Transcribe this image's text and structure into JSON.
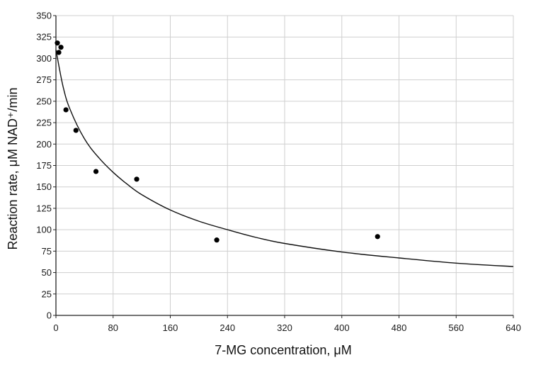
{
  "chart_data": {
    "type": "scatter",
    "xlabel": "7-MG concentration, μM",
    "ylabel": "Reaction rate, μM NAD⁺/min",
    "xlim": [
      0,
      640
    ],
    "ylim": [
      0,
      350
    ],
    "x_ticks": [
      "0",
      "80",
      "160",
      "240",
      "320",
      "400",
      "480",
      "560",
      "640"
    ],
    "y_ticks": [
      "0",
      "25",
      "50",
      "75",
      "100",
      "125",
      "150",
      "175",
      "200",
      "225",
      "250",
      "275",
      "300",
      "325",
      "350"
    ],
    "grid": true,
    "series": [
      {
        "points": [
          {
            "x": 2,
            "y": 318
          },
          {
            "x": 4,
            "y": 307
          },
          {
            "x": 7,
            "y": 313
          },
          {
            "x": 14,
            "y": 240
          },
          {
            "x": 28,
            "y": 216
          },
          {
            "x": 56,
            "y": 168
          },
          {
            "x": 113,
            "y": 159
          },
          {
            "x": 225,
            "y": 88
          },
          {
            "x": 450,
            "y": 92
          }
        ]
      }
    ],
    "fit_curve": {
      "x": [
        0,
        10,
        20,
        40,
        60,
        80,
        100,
        120,
        160,
        200,
        240,
        280,
        320,
        400,
        480,
        560,
        640
      ],
      "y": [
        310,
        267,
        240,
        206,
        184,
        167,
        153,
        141,
        123,
        110,
        100,
        91,
        84,
        74,
        67,
        61,
        57
      ]
    }
  }
}
